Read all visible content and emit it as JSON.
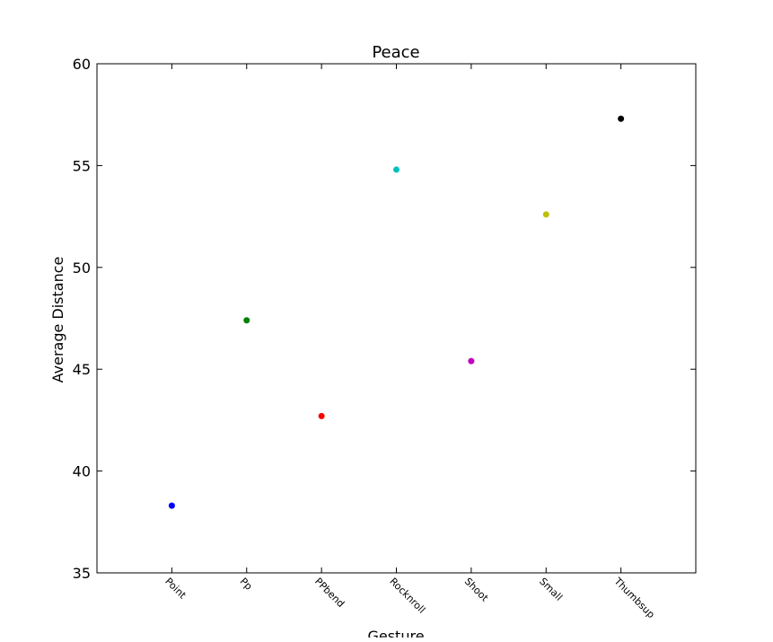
{
  "chart_data": {
    "type": "scatter",
    "title": "Peace",
    "xlabel": "Gesture",
    "ylabel": "Average Distance",
    "categories": [
      "Point",
      "Pp",
      "PPbend",
      "Rocknroll",
      "Shoot",
      "Small",
      "Thumbsup"
    ],
    "values": [
      38.3,
      47.4,
      42.7,
      54.8,
      45.4,
      52.6,
      57.3
    ],
    "colors": [
      "#0000ff",
      "#007f00",
      "#ff0000",
      "#00bfbf",
      "#bf00bf",
      "#bfbf00",
      "#000000"
    ],
    "xlim": [
      0,
      8
    ],
    "ylim": [
      35,
      60
    ],
    "yticks": [
      "35",
      "40",
      "45",
      "50",
      "55",
      "60"
    ],
    "grid": false,
    "legend": "none"
  }
}
